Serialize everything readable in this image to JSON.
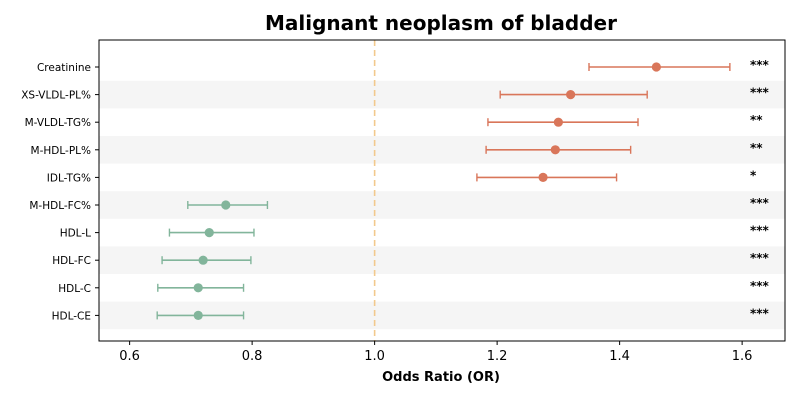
{
  "chart_data": {
    "type": "forest",
    "title": "Malignant neoplasm of bladder",
    "xlabel": "Odds Ratio (OR)",
    "ylabel": "",
    "xlim": [
      0.55,
      1.67
    ],
    "xticks": [
      0.6,
      0.8,
      1.0,
      1.2,
      1.4,
      1.6
    ],
    "xtick_labels": [
      "0.6",
      "0.8",
      "1.0",
      "1.2",
      "1.4",
      "1.6"
    ],
    "reference_line": 1.0,
    "grid": false,
    "colors": {
      "risk": "#d9765a",
      "protective": "#82b59b",
      "reference_line": "#f2c98d",
      "stripe": "#f5f5f5"
    },
    "rows": [
      {
        "label": "Creatinine",
        "or": 1.46,
        "ci_low": 1.35,
        "ci_high": 1.58,
        "sig": "***",
        "group": "risk"
      },
      {
        "label": "XS-VLDL-PL%",
        "or": 1.32,
        "ci_low": 1.205,
        "ci_high": 1.445,
        "sig": "***",
        "group": "risk"
      },
      {
        "label": "M-VLDL-TG%",
        "or": 1.3,
        "ci_low": 1.185,
        "ci_high": 1.43,
        "sig": "**",
        "group": "risk"
      },
      {
        "label": "M-HDL-PL%",
        "or": 1.295,
        "ci_low": 1.182,
        "ci_high": 1.418,
        "sig": "**",
        "group": "risk"
      },
      {
        "label": "IDL-TG%",
        "or": 1.275,
        "ci_low": 1.167,
        "ci_high": 1.395,
        "sig": "*",
        "group": "risk"
      },
      {
        "label": "M-HDL-FC%",
        "or": 0.757,
        "ci_low": 0.695,
        "ci_high": 0.825,
        "sig": "***",
        "group": "protective"
      },
      {
        "label": "HDL-L",
        "or": 0.73,
        "ci_low": 0.665,
        "ci_high": 0.803,
        "sig": "***",
        "group": "protective"
      },
      {
        "label": "HDL-FC",
        "or": 0.72,
        "ci_low": 0.653,
        "ci_high": 0.798,
        "sig": "***",
        "group": "protective"
      },
      {
        "label": "HDL-C",
        "or": 0.712,
        "ci_low": 0.646,
        "ci_high": 0.786,
        "sig": "***",
        "group": "protective"
      },
      {
        "label": "HDL-CE",
        "or": 0.712,
        "ci_low": 0.645,
        "ci_high": 0.786,
        "sig": "***",
        "group": "protective"
      }
    ]
  }
}
